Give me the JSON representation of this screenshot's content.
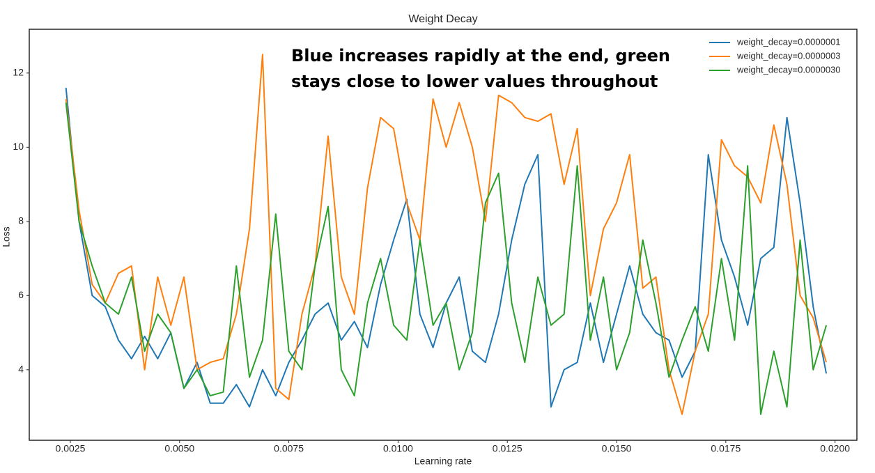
{
  "chart_data": {
    "type": "line",
    "title": "Weight Decay",
    "xlabel": "Learning rate",
    "ylabel": "Loss",
    "annotation": [
      "Blue increases rapidly at the end, green",
      "stays close to lower values throughout"
    ],
    "legend": "upper right",
    "grid": false,
    "xlim": [
      0.00156,
      0.0205
    ],
    "ylim": [
      2.1,
      13.18
    ],
    "xticks": [
      {
        "value": 0.0025,
        "label": "0.0025"
      },
      {
        "value": 0.005,
        "label": "0.0050"
      },
      {
        "value": 0.0075,
        "label": "0.0075"
      },
      {
        "value": 0.01,
        "label": "0.0100"
      },
      {
        "value": 0.0125,
        "label": "0.0125"
      },
      {
        "value": 0.015,
        "label": "0.0150"
      },
      {
        "value": 0.0175,
        "label": "0.0175"
      },
      {
        "value": 0.02,
        "label": "0.0200"
      }
    ],
    "yticks": [
      4,
      6,
      8,
      10,
      12
    ],
    "x": [
      0.0024,
      0.0027,
      0.003,
      0.0033,
      0.0036,
      0.0039,
      0.0042,
      0.0045,
      0.0048,
      0.0051,
      0.0054,
      0.0057,
      0.006,
      0.0063,
      0.0066,
      0.0069,
      0.0072,
      0.0075,
      0.0078,
      0.0081,
      0.0084,
      0.0087,
      0.009,
      0.0093,
      0.0096,
      0.0099,
      0.0102,
      0.0105,
      0.0108,
      0.0111,
      0.0114,
      0.0117,
      0.012,
      0.0123,
      0.0126,
      0.0129,
      0.0132,
      0.0135,
      0.0138,
      0.0141,
      0.0144,
      0.0147,
      0.015,
      0.0153,
      0.0156,
      0.0159,
      0.0162,
      0.0165,
      0.0168,
      0.0171,
      0.0174,
      0.0177,
      0.018,
      0.0183,
      0.0186,
      0.0189,
      0.0192,
      0.0195,
      0.0198
    ],
    "series": [
      {
        "name": "weight_decay=0.0000001",
        "color": "#1f77b4",
        "values": [
          11.6,
          8.0,
          6.0,
          5.7,
          4.8,
          4.3,
          4.9,
          4.3,
          5.0,
          3.5,
          4.2,
          3.1,
          3.1,
          3.6,
          3.0,
          4.0,
          3.3,
          4.2,
          4.8,
          5.5,
          5.8,
          4.8,
          5.3,
          4.6,
          6.3,
          7.5,
          8.6,
          5.5,
          4.6,
          5.8,
          6.5,
          4.5,
          4.2,
          5.5,
          7.5,
          9.0,
          9.8,
          3.0,
          4.0,
          4.2,
          5.8,
          4.2,
          5.5,
          6.8,
          5.5,
          5.0,
          4.8,
          3.8,
          4.5,
          9.8,
          7.5,
          6.5,
          5.2,
          7.0,
          7.3,
          10.8,
          8.5,
          5.7,
          3.9
        ]
      },
      {
        "name": "weight_decay=0.0000003",
        "color": "#ff7f0e",
        "values": [
          11.3,
          8.3,
          6.3,
          5.8,
          6.6,
          6.8,
          4.0,
          6.5,
          5.2,
          6.5,
          4.0,
          4.2,
          4.3,
          5.5,
          7.8,
          12.5,
          3.5,
          3.2,
          5.5,
          6.8,
          10.3,
          6.5,
          5.5,
          8.9,
          10.8,
          10.5,
          8.5,
          7.5,
          11.3,
          10.0,
          11.2,
          10.0,
          8.0,
          11.4,
          11.2,
          10.8,
          10.7,
          10.9,
          9.0,
          10.5,
          6.0,
          7.8,
          8.5,
          9.8,
          6.2,
          6.5,
          4.0,
          2.8,
          4.5,
          5.5,
          10.2,
          9.5,
          9.2,
          8.5,
          10.6,
          9.0,
          6.0,
          5.4,
          4.2
        ]
      },
      {
        "name": "weight_decay=0.0000030",
        "color": "#2ca02c",
        "values": [
          11.2,
          8.0,
          6.8,
          5.8,
          5.5,
          6.5,
          4.5,
          5.5,
          5.0,
          3.5,
          4.0,
          3.3,
          3.4,
          6.8,
          3.8,
          4.8,
          8.2,
          4.5,
          4.0,
          6.8,
          8.4,
          4.0,
          3.3,
          5.8,
          7.0,
          5.2,
          4.8,
          7.5,
          5.2,
          5.8,
          4.0,
          5.0,
          8.5,
          9.3,
          5.8,
          4.2,
          6.5,
          5.2,
          5.5,
          9.5,
          4.8,
          6.5,
          4.0,
          5.0,
          7.5,
          5.8,
          3.8,
          4.8,
          5.7,
          4.5,
          7.0,
          4.8,
          9.5,
          2.8,
          4.5,
          3.0,
          7.5,
          4.0,
          5.2
        ]
      }
    ]
  }
}
